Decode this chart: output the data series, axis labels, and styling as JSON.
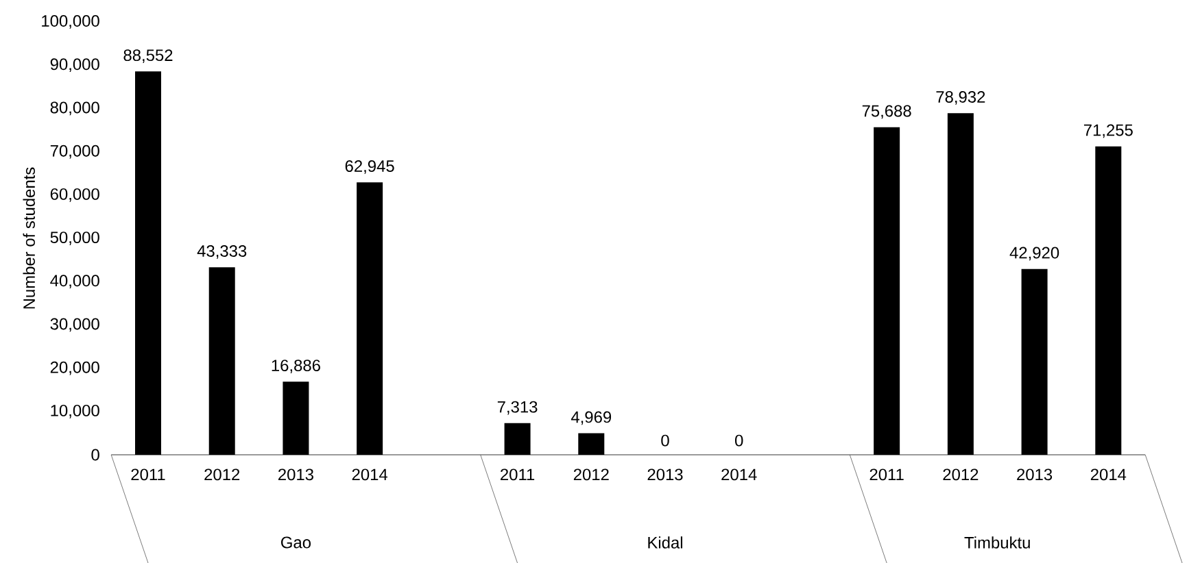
{
  "chart_data": {
    "type": "bar",
    "ylabel": "Number of students",
    "categories": [
      "2011",
      "2012",
      "2013",
      "2014",
      null,
      "2011",
      "2012",
      "2013",
      "2014",
      null,
      "2011",
      "2012",
      "2013",
      "2014"
    ],
    "values": [
      88552,
      43333,
      16886,
      62945,
      null,
      7313,
      4969,
      0,
      0,
      null,
      75688,
      78932,
      42920,
      71255
    ],
    "value_labels": [
      "88,552",
      "43,333",
      "16,886",
      "62,945",
      null,
      "7,313",
      "4,969",
      "0",
      "0",
      null,
      "75,688",
      "78,932",
      "42,920",
      "71,255"
    ],
    "color": "#000000",
    "annotations": [
      "Gao",
      "Kidal",
      "Timbuktu"
    ],
    "ylim": [
      0,
      100000
    ],
    "yticks": [
      0,
      {
        "value": 10000,
        "label": "10,000"
      },
      {
        "value": 20000,
        "label": "20,000"
      },
      {
        "value": 30000,
        "label": "30,000"
      },
      {
        "value": 40000,
        "label": "40,000"
      },
      {
        "value": 50000,
        "label": "50,000"
      },
      {
        "value": 60000,
        "label": "60,000"
      },
      {
        "value": 70000,
        "label": "70,000"
      },
      {
        "value": 80000,
        "label": "80,000"
      },
      {
        "value": 90000,
        "label": "90,000"
      },
      {
        "value": 100000,
        "label": "100,000"
      }
    ]
  }
}
